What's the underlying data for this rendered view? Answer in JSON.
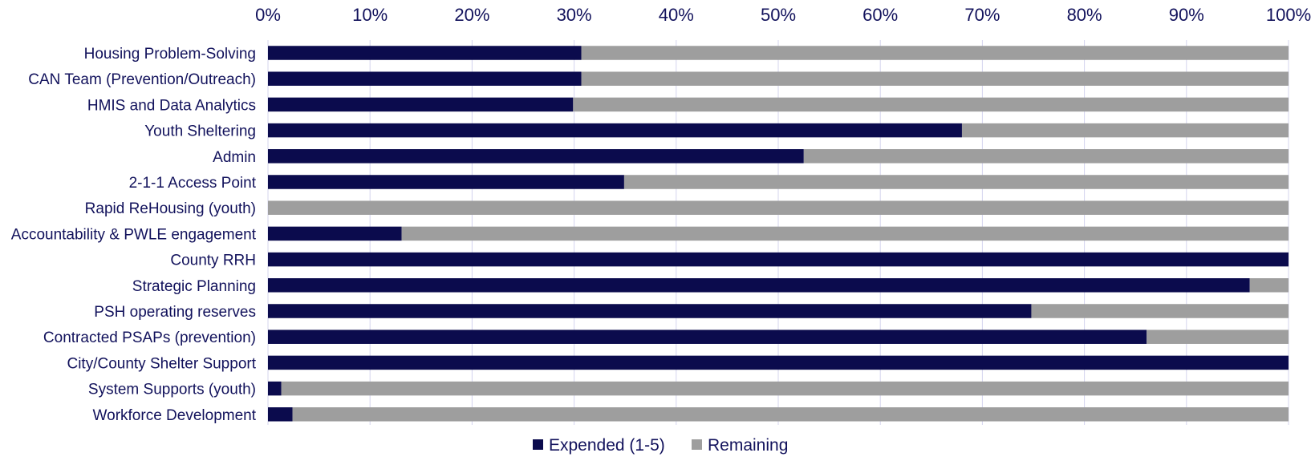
{
  "chart_data": {
    "type": "bar",
    "orientation": "horizontal",
    "stacked": true,
    "normalized_percent": true,
    "categories": [
      "Housing Problem-Solving",
      "CAN Team (Prevention/Outreach)",
      "HMIS and Data Analytics",
      "Youth Sheltering",
      "Admin",
      "2-1-1 Access Point",
      "Rapid ReHousing (youth)",
      "Accountability & PWLE engagement",
      "County RRH",
      "Strategic Planning",
      "PSH operating reserves",
      "Contracted PSAPs (prevention)",
      "City/County Shelter Support",
      "System Supports (youth)",
      "Workforce Development"
    ],
    "series": [
      {
        "name": "Expended (1-5)",
        "color": "#0b0b4d",
        "values": [
          30.7,
          30.7,
          29.9,
          68.0,
          52.5,
          34.9,
          0,
          13.1,
          100,
          96.2,
          74.8,
          86.1,
          100,
          1.3,
          2.4
        ]
      },
      {
        "name": "Remaining",
        "color": "#9e9e9e",
        "values": [
          69.3,
          69.3,
          70.1,
          32.0,
          47.5,
          65.1,
          100,
          86.9,
          0,
          3.8,
          25.2,
          13.9,
          0,
          98.7,
          97.6
        ]
      }
    ],
    "xlim": [
      0,
      100
    ],
    "xticks": [
      "0%",
      "10%",
      "20%",
      "30%",
      "40%",
      "50%",
      "60%",
      "70%",
      "80%",
      "90%",
      "100%"
    ],
    "x_axis_position": "top",
    "grid": "vertical",
    "grid_color": "#d4d4ee",
    "text_color": "#12125c",
    "legend_position": "bottom-center",
    "title": "",
    "xlabel": "",
    "ylabel": ""
  }
}
